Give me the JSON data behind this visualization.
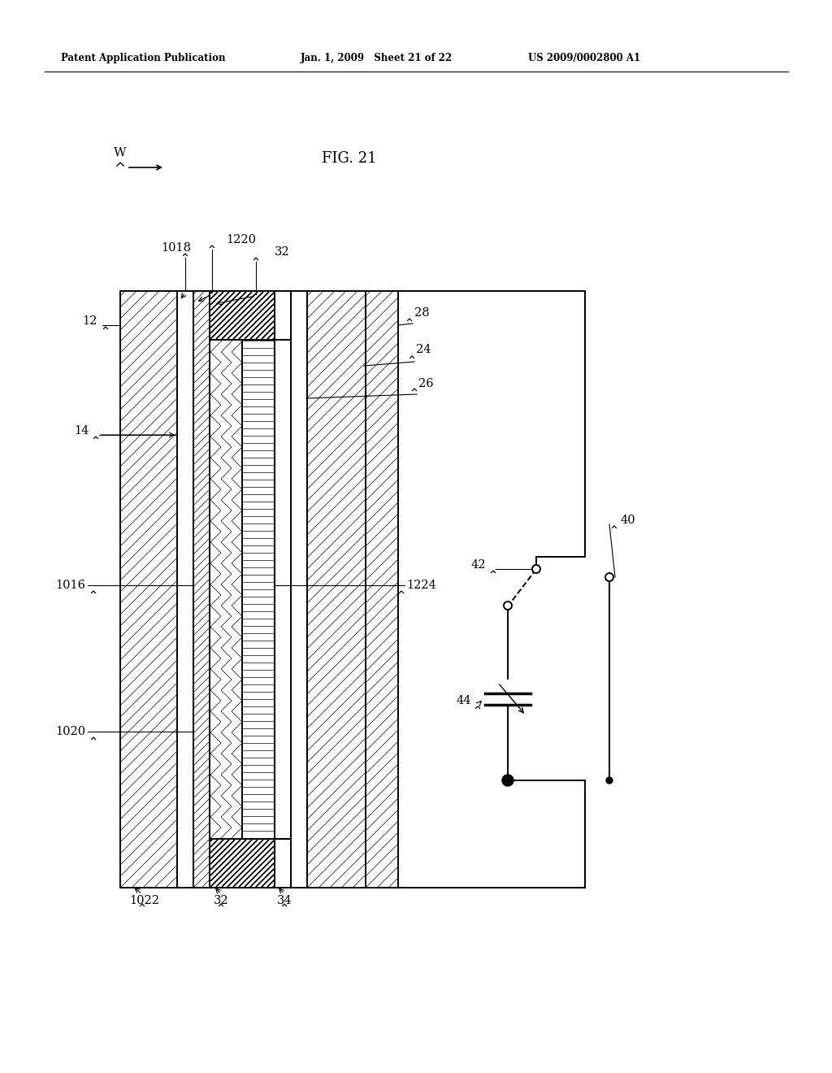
{
  "header_left": "Patent Application Publication",
  "header_mid": "Jan. 1, 2009   Sheet 21 of 22",
  "header_right": "US 2009/0002800 A1",
  "fig_label": "FIG. 21",
  "bg_color": "#ffffff",
  "line_color": "#000000"
}
